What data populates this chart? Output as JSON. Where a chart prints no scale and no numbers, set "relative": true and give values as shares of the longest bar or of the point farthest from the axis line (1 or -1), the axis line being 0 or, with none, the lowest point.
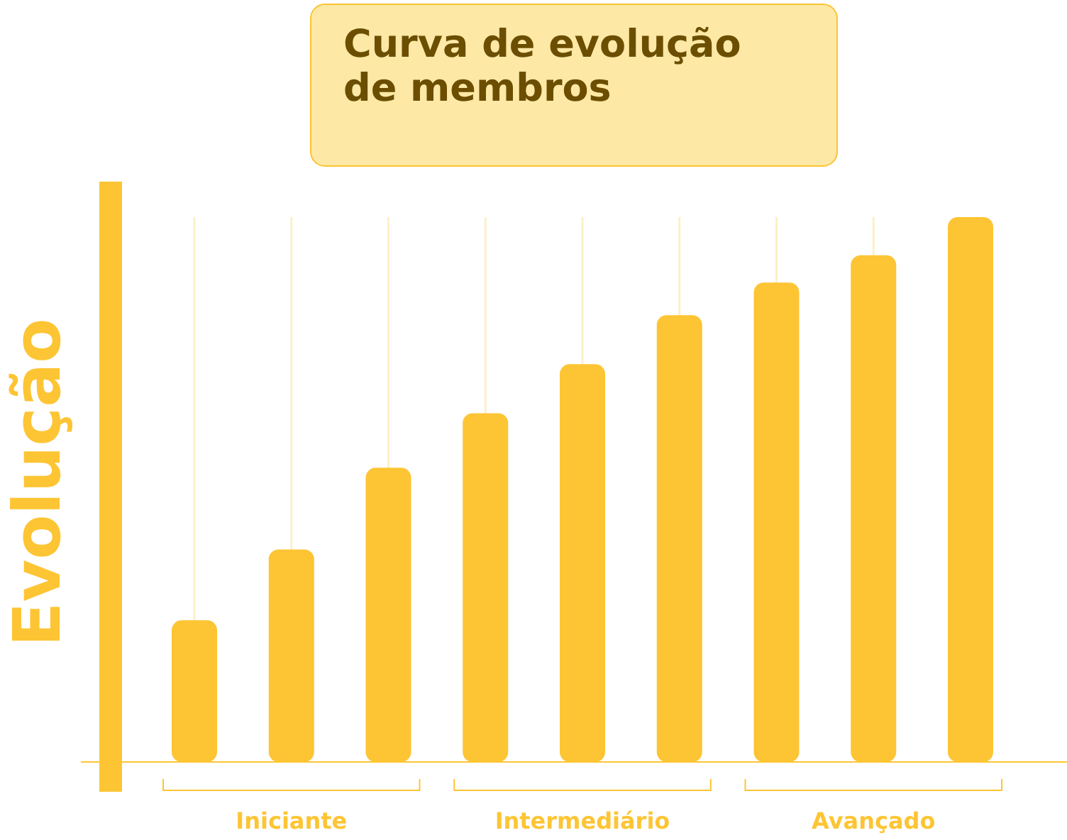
{
  "chart_data": {
    "type": "bar",
    "title": "Curva de evolução de membros",
    "ylabel": "Evolução",
    "categories": [
      null,
      "Iniciante",
      null,
      null,
      "Intermediário",
      null,
      null,
      "Avançado",
      null
    ],
    "values": [
      0.26,
      0.39,
      0.54,
      0.64,
      0.73,
      0.82,
      0.88,
      0.93,
      1
    ],
    "color": "#fdc534",
    "relative": true,
    "grid": "x"
  }
}
